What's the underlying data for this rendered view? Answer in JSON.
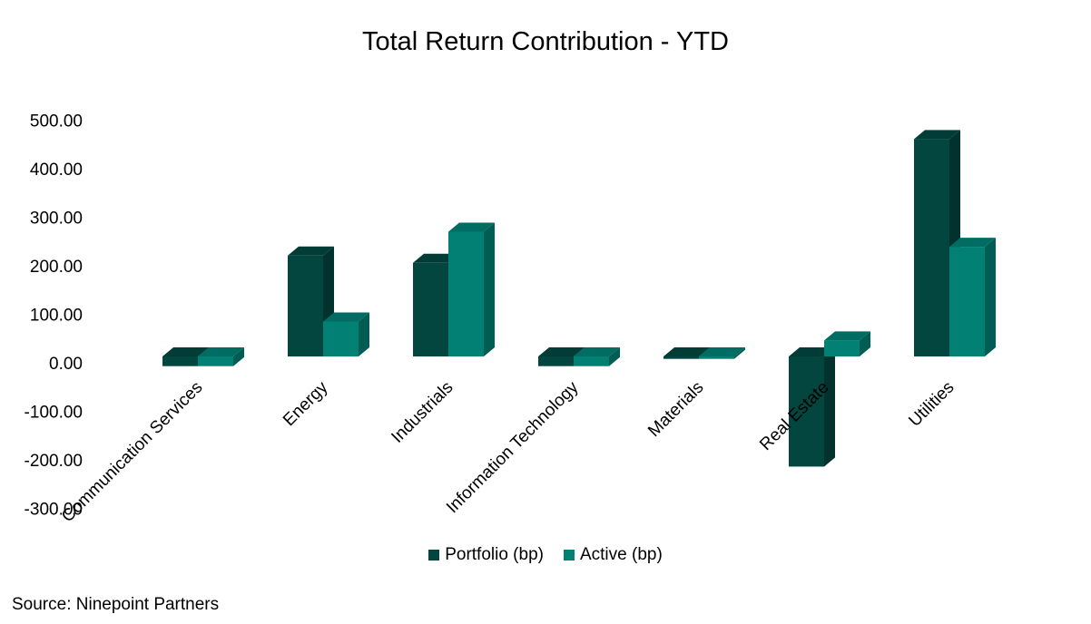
{
  "title": "Total Return Contribution - YTD",
  "source": "Source: Ninepoint Partners",
  "chart_data": {
    "type": "bar",
    "style": "3d-clustered-column",
    "title": "Total Return Contribution - YTD",
    "categories": [
      "Communication Services",
      "Energy",
      "Industrials",
      "Information Technology",
      "Materials",
      "Real Estate",
      "Utilities"
    ],
    "series": [
      {
        "name": "Portfolio (bp)",
        "color": "#02463F",
        "values": [
          -20,
          208,
          193,
          -20,
          -5,
          -227,
          448
        ]
      },
      {
        "name": "Active (bp)",
        "color": "#018073",
        "values": [
          -20,
          72,
          257,
          -20,
          -5,
          33,
          226
        ]
      }
    ],
    "ylim": [
      -300,
      500
    ],
    "yticks": [
      500,
      400,
      300,
      200,
      100,
      0,
      -100,
      -200,
      -300
    ],
    "ytick_labels": [
      "500.00",
      "400.00",
      "300.00",
      "200.00",
      "100.00",
      "0.00",
      "-100.00",
      "-200.00",
      "-300.00"
    ],
    "legend_position": "bottom",
    "grid": false
  }
}
